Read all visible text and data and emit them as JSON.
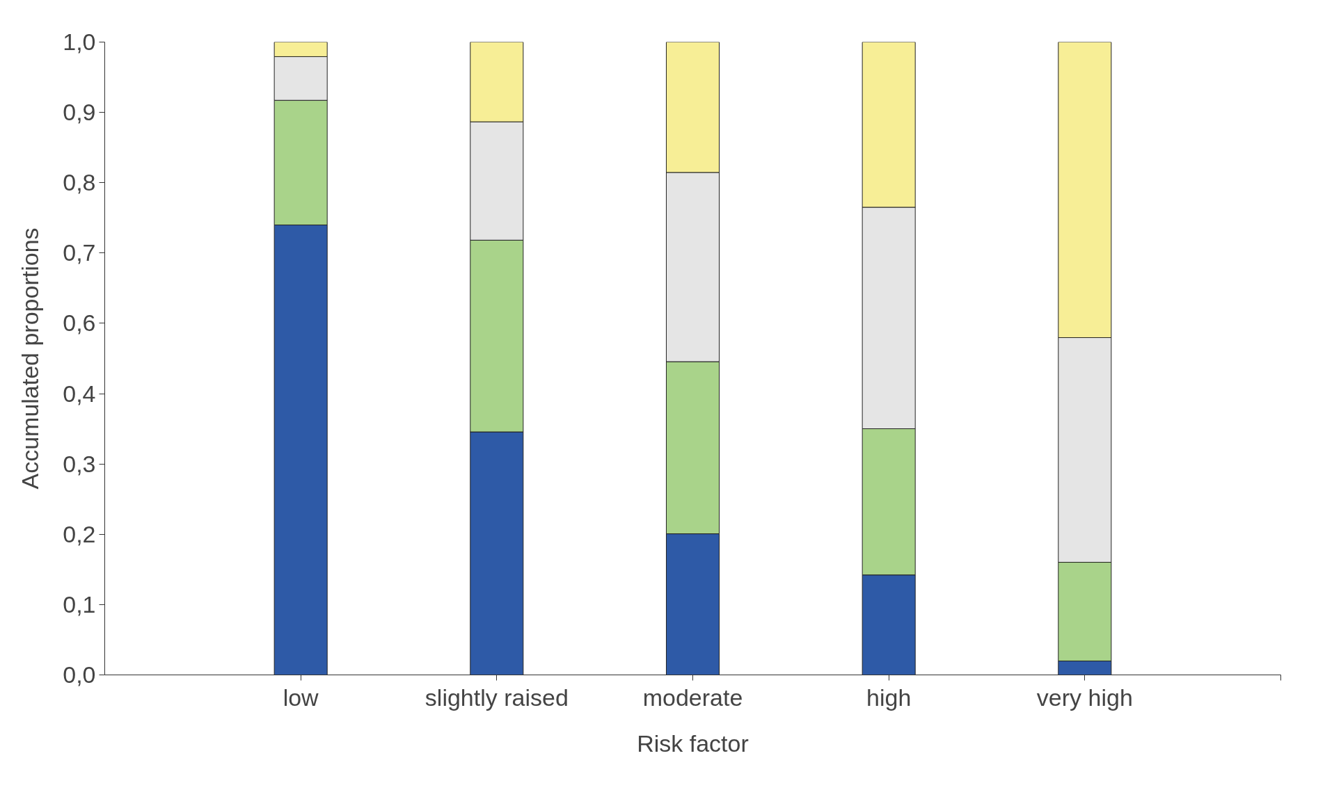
{
  "chart_data": {
    "type": "bar",
    "stacked": true,
    "xlabel": "Risk factor",
    "ylabel": "Accumulated proportions",
    "categories": [
      "low",
      "slightly raised",
      "moderate",
      "high",
      "very high"
    ],
    "series": [
      {
        "color": "#2e5aa7",
        "values": [
          0.711,
          0.384,
          0.223,
          0.158,
          0.022
        ]
      },
      {
        "color": "#a9d38a",
        "values": [
          0.197,
          0.303,
          0.272,
          0.231,
          0.156
        ]
      },
      {
        "color": "#e5e5e5",
        "values": [
          0.069,
          0.187,
          0.299,
          0.35,
          0.355
        ]
      },
      {
        "color": "#f7ee96",
        "values": [
          0.023,
          0.126,
          0.206,
          0.261,
          0.467
        ]
      }
    ],
    "ylim": [
      0,
      1
    ],
    "yticks": [
      {
        "value": 0,
        "label": "0,0"
      },
      {
        "value": 0.111,
        "label": "0,1"
      },
      {
        "value": 0.222,
        "label": "0,2"
      },
      {
        "value": 0.333,
        "label": "0,3"
      },
      {
        "value": 0.444,
        "label": "0,4"
      },
      {
        "value": 0.556,
        "label": "0,6"
      },
      {
        "value": 0.667,
        "label": "0,7"
      },
      {
        "value": 0.778,
        "label": "0,8"
      },
      {
        "value": 0.889,
        "label": "0,9"
      },
      {
        "value": 1,
        "label": "1,0"
      }
    ],
    "grid": false
  }
}
